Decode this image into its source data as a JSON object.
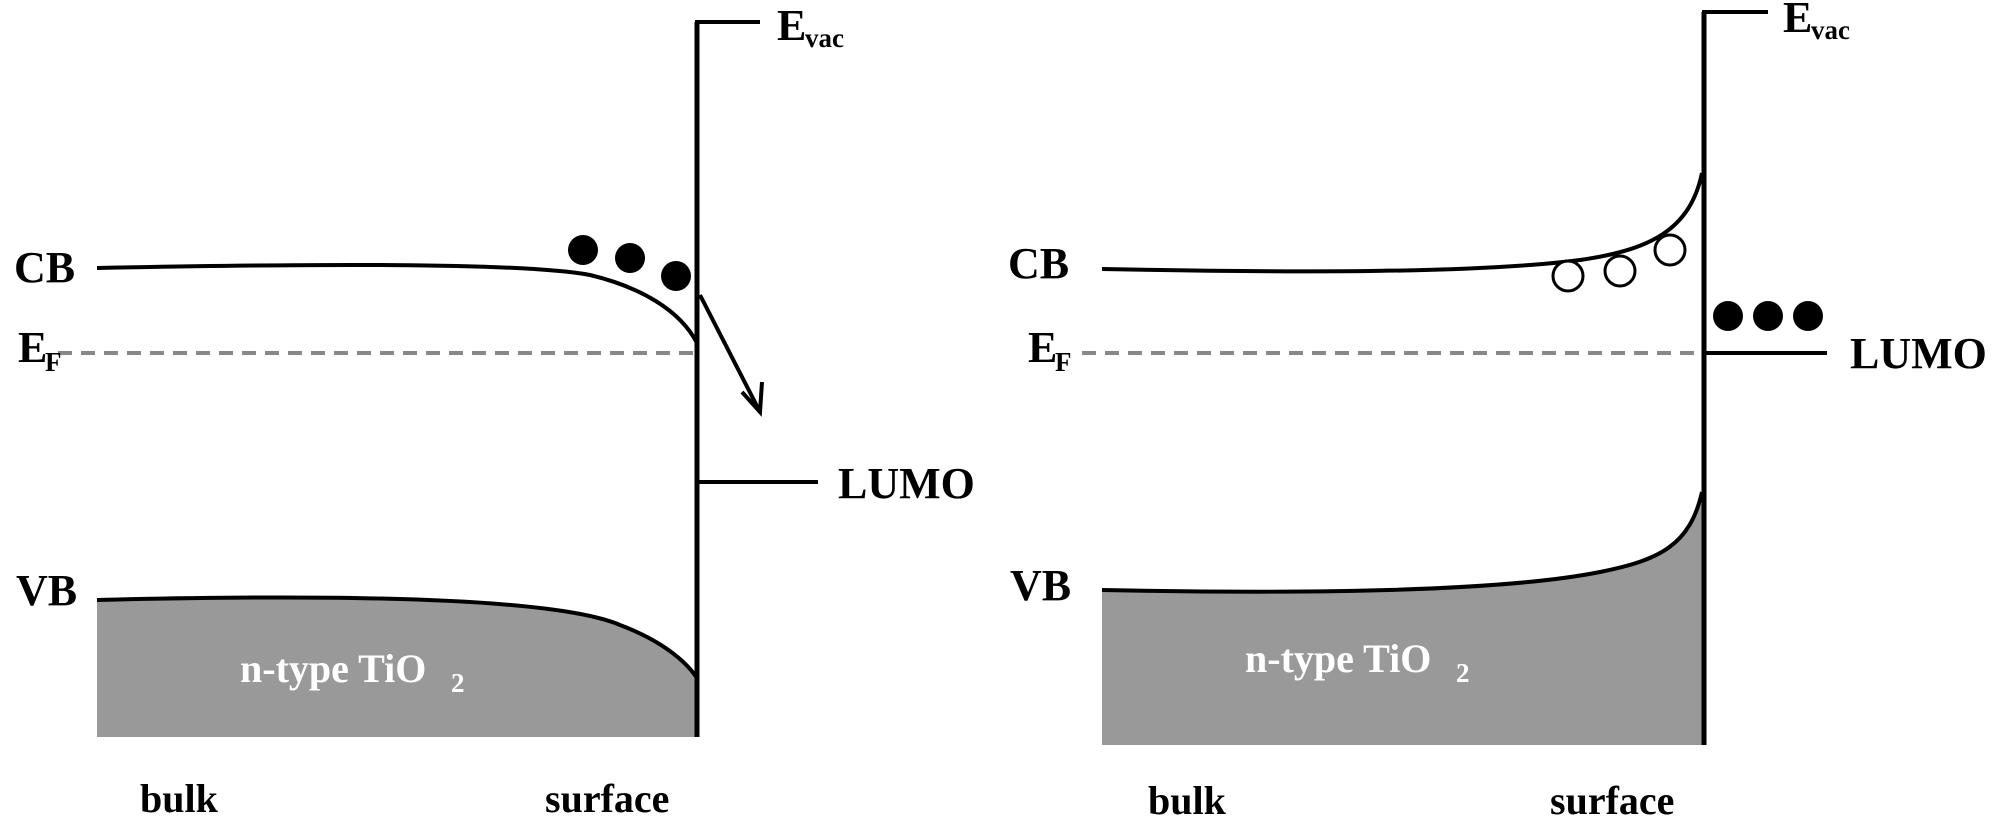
{
  "colors": {
    "line": "#000000",
    "valence_fill": "#999999",
    "fermi_dash": "#888888",
    "background": "#ffffff"
  },
  "panels": [
    {
      "cb_label": "CB",
      "ef_label_main": "E",
      "ef_label_sub": "F",
      "vb_label": "VB",
      "evac_label_main": "E",
      "evac_label_sub": "vac",
      "lumo_label": "LUMO",
      "material_main": "n-type TiO",
      "material_sub": "2",
      "bulk_label": "bulk",
      "surface_label": "surface",
      "band_bending": "downward",
      "cb_carriers": "filled electrons (3)",
      "lumo_carriers": "none"
    },
    {
      "cb_label": "CB",
      "ef_label_main": "E",
      "ef_label_sub": "F",
      "vb_label": "VB",
      "evac_label_main": "E",
      "evac_label_sub": "vac",
      "lumo_label": "LUMO",
      "material_main": "n-type TiO",
      "material_sub": "2",
      "bulk_label": "bulk",
      "surface_label": "surface",
      "band_bending": "upward",
      "cb_carriers": "open holes (3)",
      "lumo_carriers": "filled electrons (3)"
    }
  ]
}
